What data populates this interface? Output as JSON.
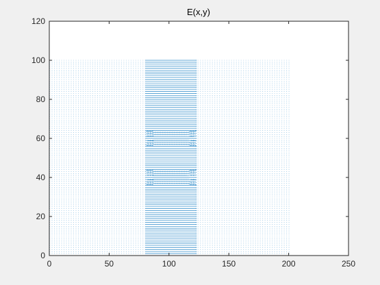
{
  "chart_data": {
    "type": "quiver",
    "title": "E(x,y)",
    "xlabel": "",
    "ylabel": "",
    "xlim": [
      0,
      250
    ],
    "ylim": [
      0,
      120
    ],
    "xticks": [
      "0",
      "50",
      "100",
      "150",
      "200",
      "250"
    ],
    "yticks": [
      "0",
      "20",
      "40",
      "60",
      "80",
      "100",
      "120"
    ],
    "grid": false,
    "legend": "none",
    "field_domain": {
      "x": [
        0,
        200
      ],
      "y": [
        0,
        100
      ]
    },
    "dense_band": {
      "x": [
        80,
        120
      ]
    },
    "disturbance_rows_y": [
      40,
      60
    ],
    "arrow_color": "#0072bd"
  }
}
